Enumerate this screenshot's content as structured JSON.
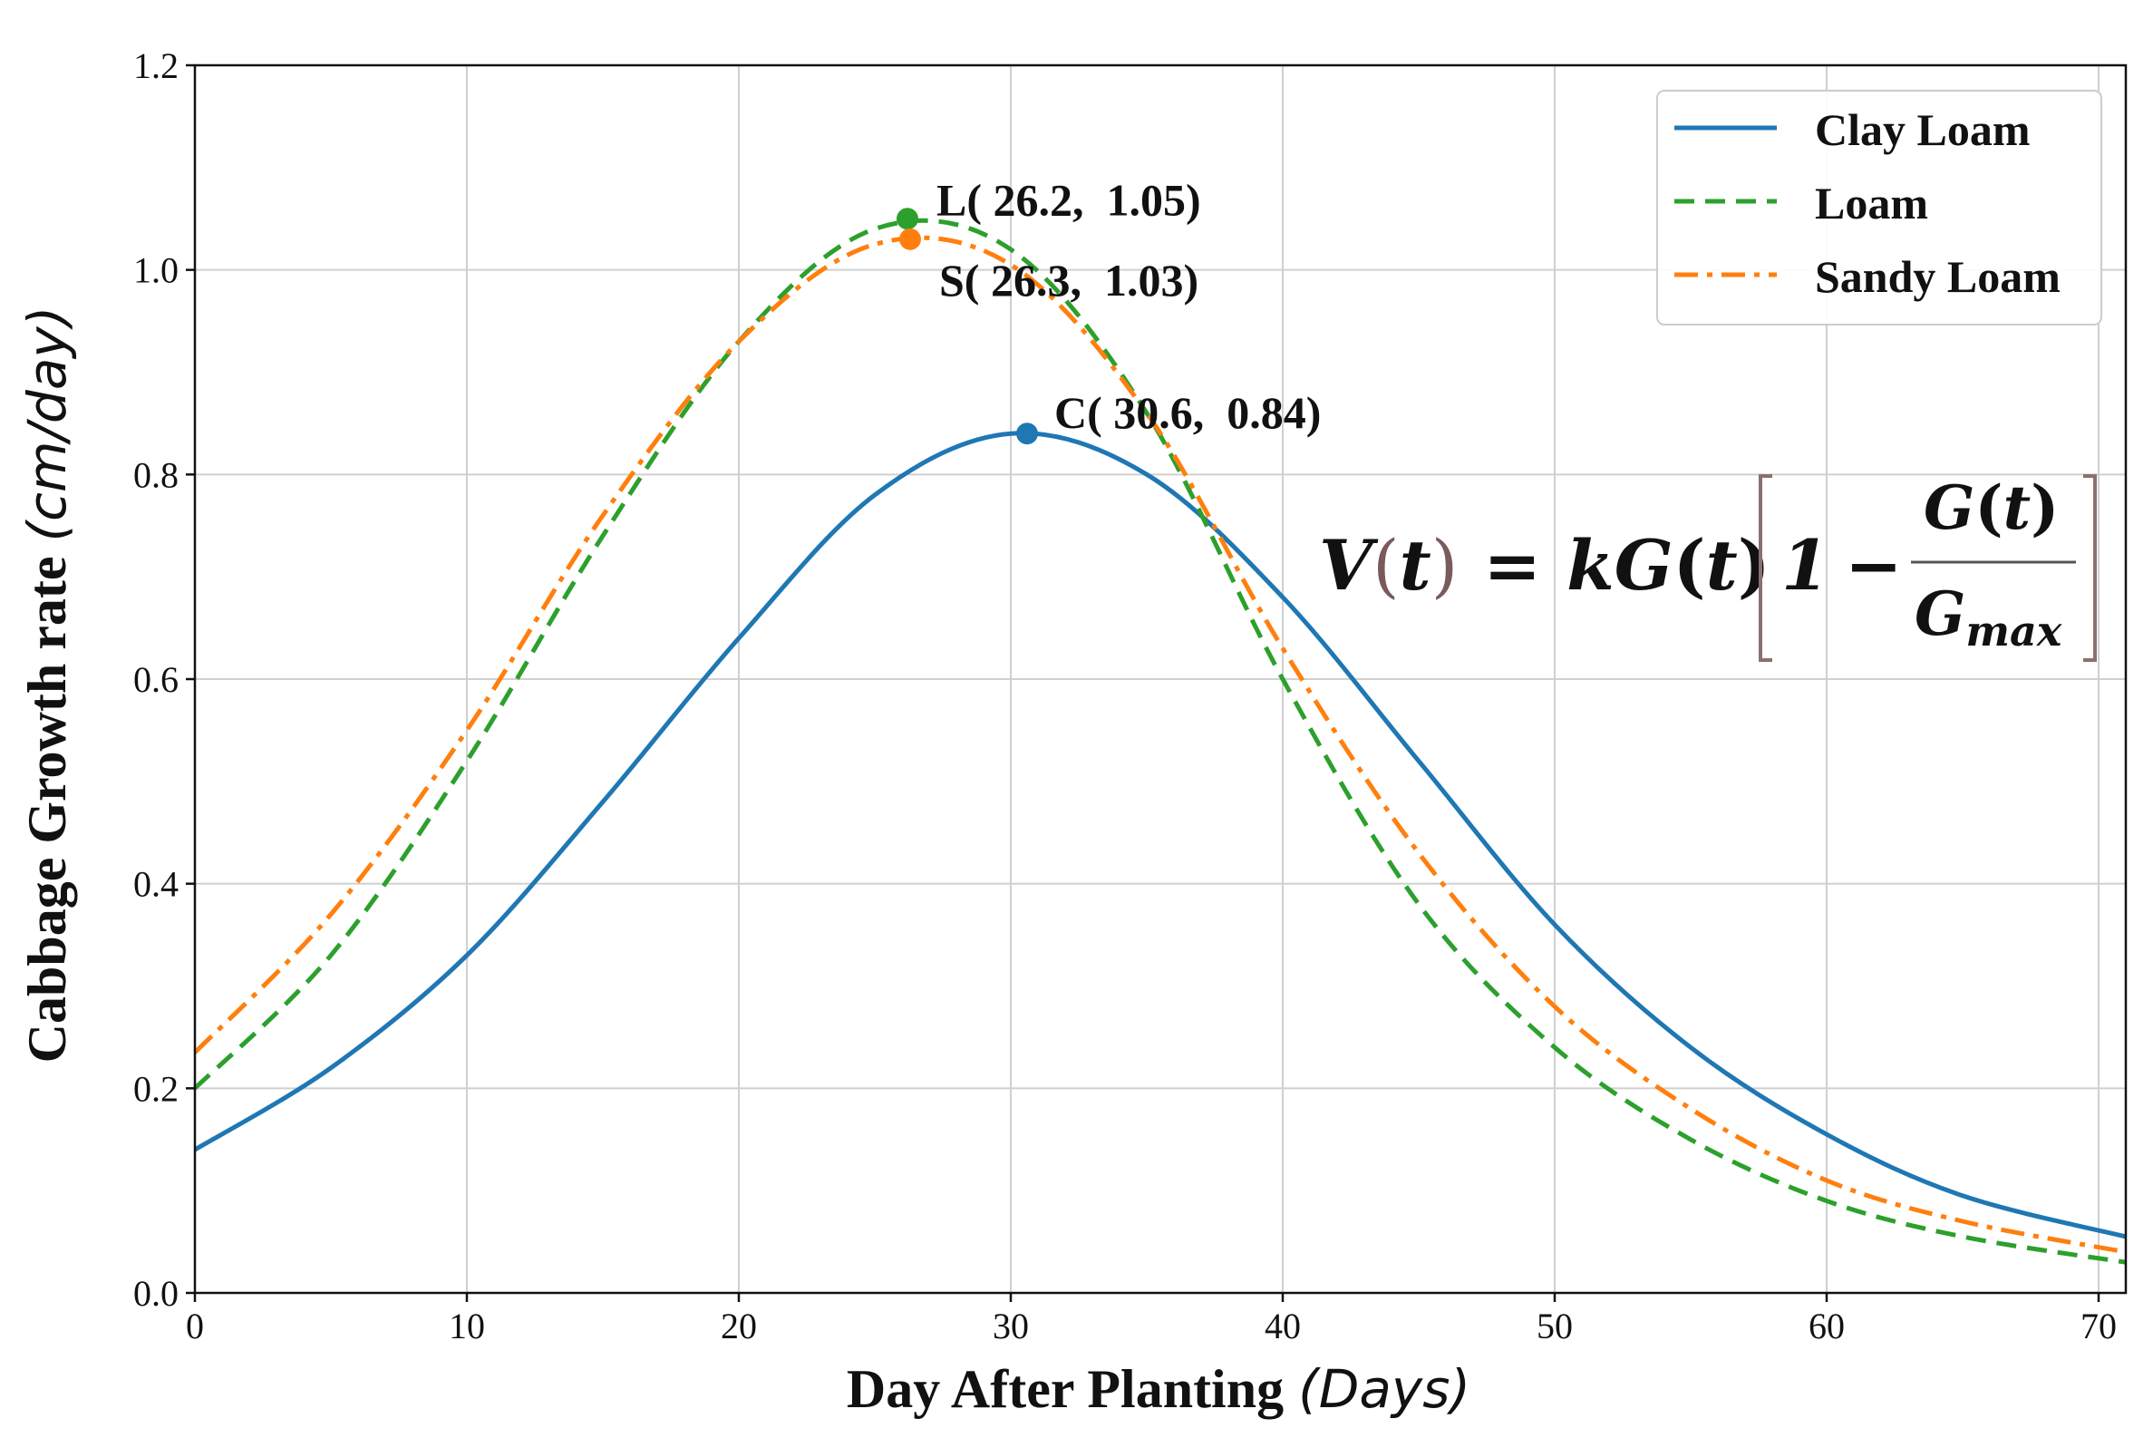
{
  "chart_data": {
    "type": "line",
    "title": "",
    "xlabel": "Day After Planting",
    "xlabel_unit": "(Days)",
    "ylabel": "Cabbage Growth rate",
    "ylabel_unit": "(cm/day)",
    "xlim": [
      0,
      71
    ],
    "ylim": [
      0,
      1.2
    ],
    "xticks": [
      0,
      10,
      20,
      30,
      40,
      50,
      60,
      70
    ],
    "yticks": [
      0.0,
      0.2,
      0.4,
      0.6,
      0.8,
      1.0,
      1.2
    ],
    "x_tick_labels": [
      "0",
      "10",
      "20",
      "30",
      "40",
      "50",
      "60",
      "70"
    ],
    "y_tick_labels": [
      "0.0",
      "0.2",
      "0.4",
      "0.6",
      "0.8",
      "1.0",
      "1.2"
    ],
    "grid": true,
    "legend_position": "top-right",
    "series": [
      {
        "name": "Clay Loam",
        "color": "#1f77b4",
        "style": "solid",
        "x": [
          0,
          5,
          10,
          15,
          20,
          25,
          30,
          35,
          40,
          45,
          50,
          55,
          60,
          65,
          71
        ],
        "y": [
          0.14,
          0.22,
          0.33,
          0.48,
          0.64,
          0.78,
          0.84,
          0.8,
          0.68,
          0.52,
          0.36,
          0.24,
          0.155,
          0.095,
          0.055
        ]
      },
      {
        "name": "Loam",
        "color": "#2ca02c",
        "style": "dashed",
        "x": [
          0,
          5,
          10,
          15,
          20,
          25,
          30,
          35,
          40,
          45,
          50,
          55,
          60,
          65,
          71
        ],
        "y": [
          0.2,
          0.33,
          0.52,
          0.74,
          0.93,
          1.04,
          1.02,
          0.86,
          0.6,
          0.38,
          0.24,
          0.15,
          0.09,
          0.055,
          0.03
        ]
      },
      {
        "name": "Sandy Loam",
        "color": "#ff7f0e",
        "style": "dashdot",
        "x": [
          0,
          5,
          10,
          15,
          20,
          25,
          30,
          35,
          40,
          45,
          50,
          55,
          60,
          65,
          71
        ],
        "y": [
          0.235,
          0.37,
          0.55,
          0.76,
          0.93,
          1.025,
          1.005,
          0.86,
          0.63,
          0.43,
          0.28,
          0.18,
          0.11,
          0.07,
          0.04
        ]
      }
    ],
    "annotations": [
      {
        "label": "L( 26.2,  1.05)",
        "x": 26.2,
        "y": 1.05,
        "series": "Loam"
      },
      {
        "label": "S( 26.3,  1.03)",
        "x": 26.3,
        "y": 1.03,
        "series": "Sandy Loam"
      },
      {
        "label": "C( 30.6,  0.84)",
        "x": 30.6,
        "y": 0.84,
        "series": "Clay Loam"
      }
    ],
    "formula": {
      "lhs_func": "V",
      "var": "t",
      "k": "k",
      "G": "G",
      "one": "1",
      "minus": "−",
      "equals": "=",
      "gmax_base": "G",
      "gmax_sub": "max"
    }
  }
}
